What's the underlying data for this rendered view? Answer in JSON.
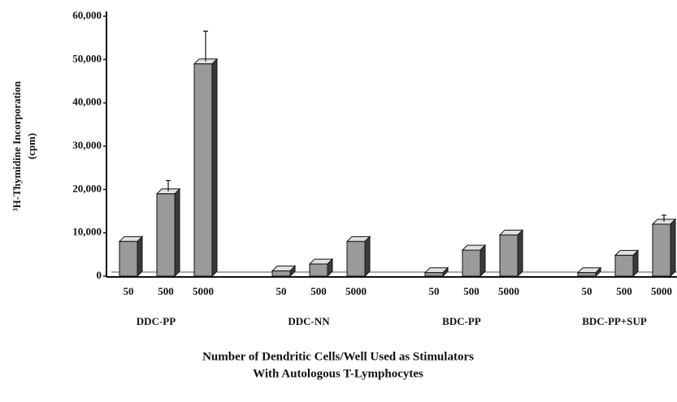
{
  "chart_data": {
    "type": "bar",
    "y_label": [
      "³H-Thymidine Incorporation",
      "(cpm)"
    ],
    "x_label": [
      "Number of Dendritic Cells/Well Used as Stimulators",
      "With Autologous T-Lymphocytes"
    ],
    "groups": [
      {
        "name": "DDC-PP",
        "categories": [
          "50",
          "500",
          "5000"
        ],
        "values": [
          8000,
          19000,
          49000
        ],
        "errors": [
          null,
          2500,
          7000
        ]
      },
      {
        "name": "DDC-NN",
        "categories": [
          "50",
          "500",
          "5000"
        ],
        "values": [
          1200,
          2800,
          8000
        ],
        "errors": [
          null,
          null,
          null
        ]
      },
      {
        "name": "BDC-PP",
        "categories": [
          "50",
          "500",
          "5000"
        ],
        "values": [
          800,
          6000,
          9500
        ],
        "errors": [
          null,
          null,
          null
        ]
      },
      {
        "name": "BDC-PP+SUP",
        "categories": [
          "50",
          "500",
          "5000"
        ],
        "values": [
          800,
          4800,
          12000
        ],
        "errors": [
          null,
          null,
          1500
        ]
      }
    ],
    "color": "#9a9a9a",
    "ylim": [
      0,
      60000
    ],
    "yticks": [
      0,
      {
        "value": 10000,
        "label": "10,000"
      },
      {
        "value": 20000,
        "label": "20,000"
      },
      {
        "value": 30000,
        "label": "30,000"
      },
      {
        "value": 40000,
        "label": "40,000"
      },
      {
        "value": 50000,
        "label": "50,000"
      },
      {
        "value": 60000,
        "label": "60,000"
      }
    ]
  }
}
